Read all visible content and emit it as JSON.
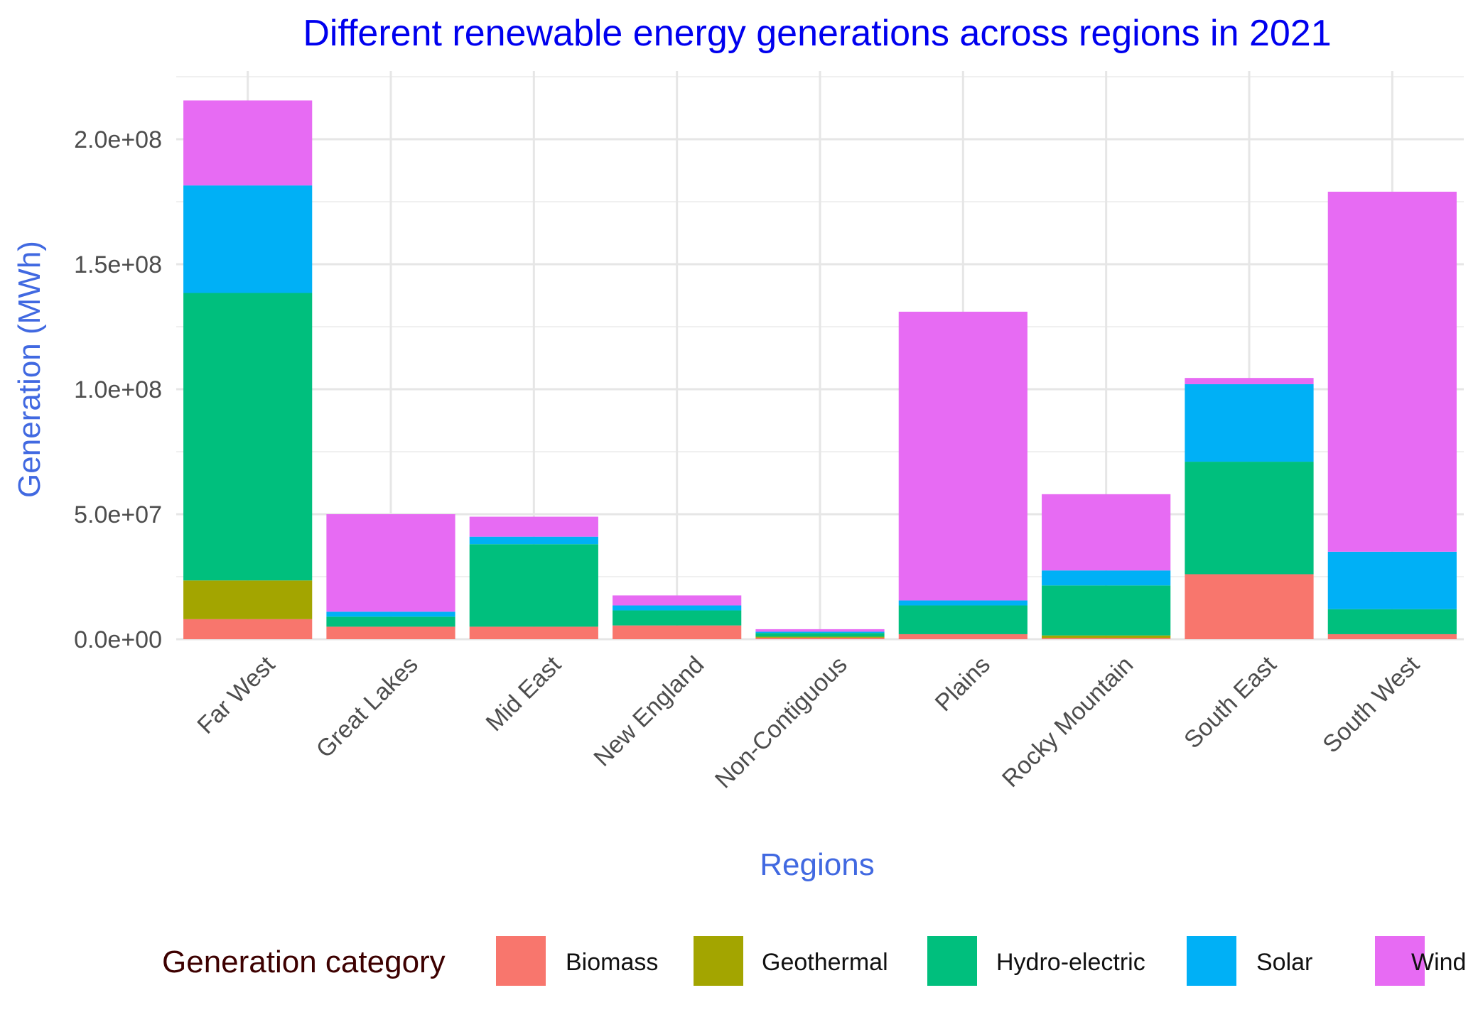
{
  "chart_data": {
    "type": "bar",
    "stacked": true,
    "title": "Different renewable energy generations across regions in 2021",
    "xlabel": "Regions",
    "ylabel": "Generation (MWh)",
    "ylim": [
      0,
      225000000
    ],
    "y_ticks": [
      0,
      50000000,
      100000000,
      150000000,
      200000000
    ],
    "y_tick_labels": [
      "0.0e+00",
      "5.0e+07",
      "1.0e+08",
      "1.5e+08",
      "2.0e+08"
    ],
    "grid": true,
    "legend_position": "bottom",
    "legend_title": "Generation category",
    "categories": [
      "Far West",
      "Great Lakes",
      "Mid East",
      "New England",
      "Non-Contiguous",
      "Plains",
      "Rocky Mountain",
      "South East",
      "South West"
    ],
    "series": [
      {
        "name": "Biomass",
        "color": "#F8766D",
        "values": [
          8000000,
          5000000,
          5000000,
          5500000,
          600000,
          2000000,
          500000,
          26000000,
          2000000
        ]
      },
      {
        "name": "Geothermal",
        "color": "#A3A500",
        "values": [
          15500000,
          0,
          0,
          0,
          400000,
          0,
          1000000,
          0,
          0
        ]
      },
      {
        "name": "Hydro-electric",
        "color": "#00BF7D",
        "values": [
          115000000,
          4000000,
          33000000,
          6000000,
          1500000,
          11500000,
          20000000,
          45000000,
          10000000
        ]
      },
      {
        "name": "Solar",
        "color": "#00B0F6",
        "values": [
          43000000,
          2000000,
          3000000,
          2000000,
          500000,
          2000000,
          6000000,
          31000000,
          23000000
        ]
      },
      {
        "name": "Wind",
        "color": "#E76BF3",
        "values": [
          34000000,
          39000000,
          8000000,
          4000000,
          1000000,
          115500000,
          30500000,
          2500000,
          144000000
        ]
      }
    ]
  }
}
